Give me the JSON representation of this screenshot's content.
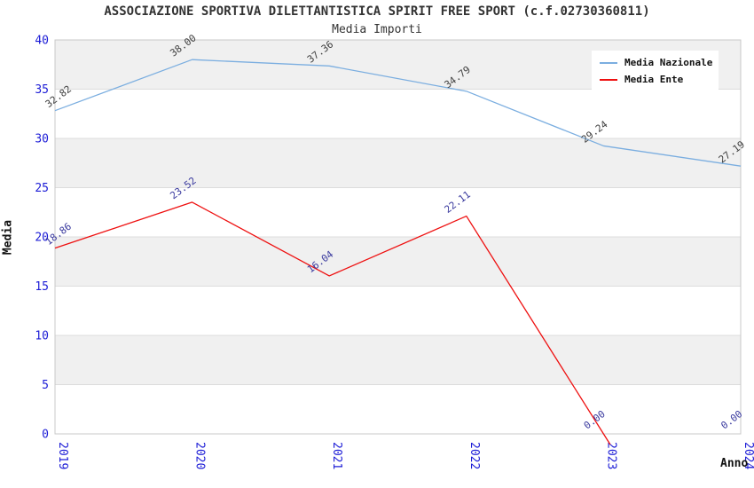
{
  "chart_data": {
    "type": "line",
    "title": "ASSOCIAZIONE SPORTIVA DILETTANTISTICA SPIRIT FREE SPORT (c.f.02730360811)",
    "subtitle": "Media Importi",
    "xlabel": "Anno",
    "ylabel": "Media",
    "categories": [
      "2019",
      "2020",
      "2021",
      "2022",
      "2023",
      "2024"
    ],
    "series": [
      {
        "name": "Media Nazionale",
        "color": "#7BAEE0",
        "label_color": "#3F3F3F",
        "values": [
          32.82,
          38.0,
          37.36,
          34.79,
          29.24,
          27.19
        ],
        "line_stops_after_index": 5,
        "overshoot_below_zero": false
      },
      {
        "name": "Media Ente",
        "color": "#EE1010",
        "label_color": "#39399E",
        "values": [
          18.86,
          23.52,
          16.04,
          22.11,
          0.0,
          0.0
        ],
        "line_stops_after_index": 4,
        "overshoot_below_zero": true
      }
    ],
    "ylim": [
      0,
      40
    ],
    "ytick_step": 5,
    "yticks": [
      0,
      5,
      10,
      15,
      20,
      25,
      30,
      35,
      40
    ],
    "grid": "horizontal-bands",
    "band_colors": [
      "#F0F0F0",
      "#FFFFFF"
    ],
    "gridline_color": "#DCDCDC",
    "spine_color": "#C8C8C8",
    "tick_label_color": "#1C1CD6",
    "legend_position": "top-right",
    "value_label_decimals": 2
  }
}
